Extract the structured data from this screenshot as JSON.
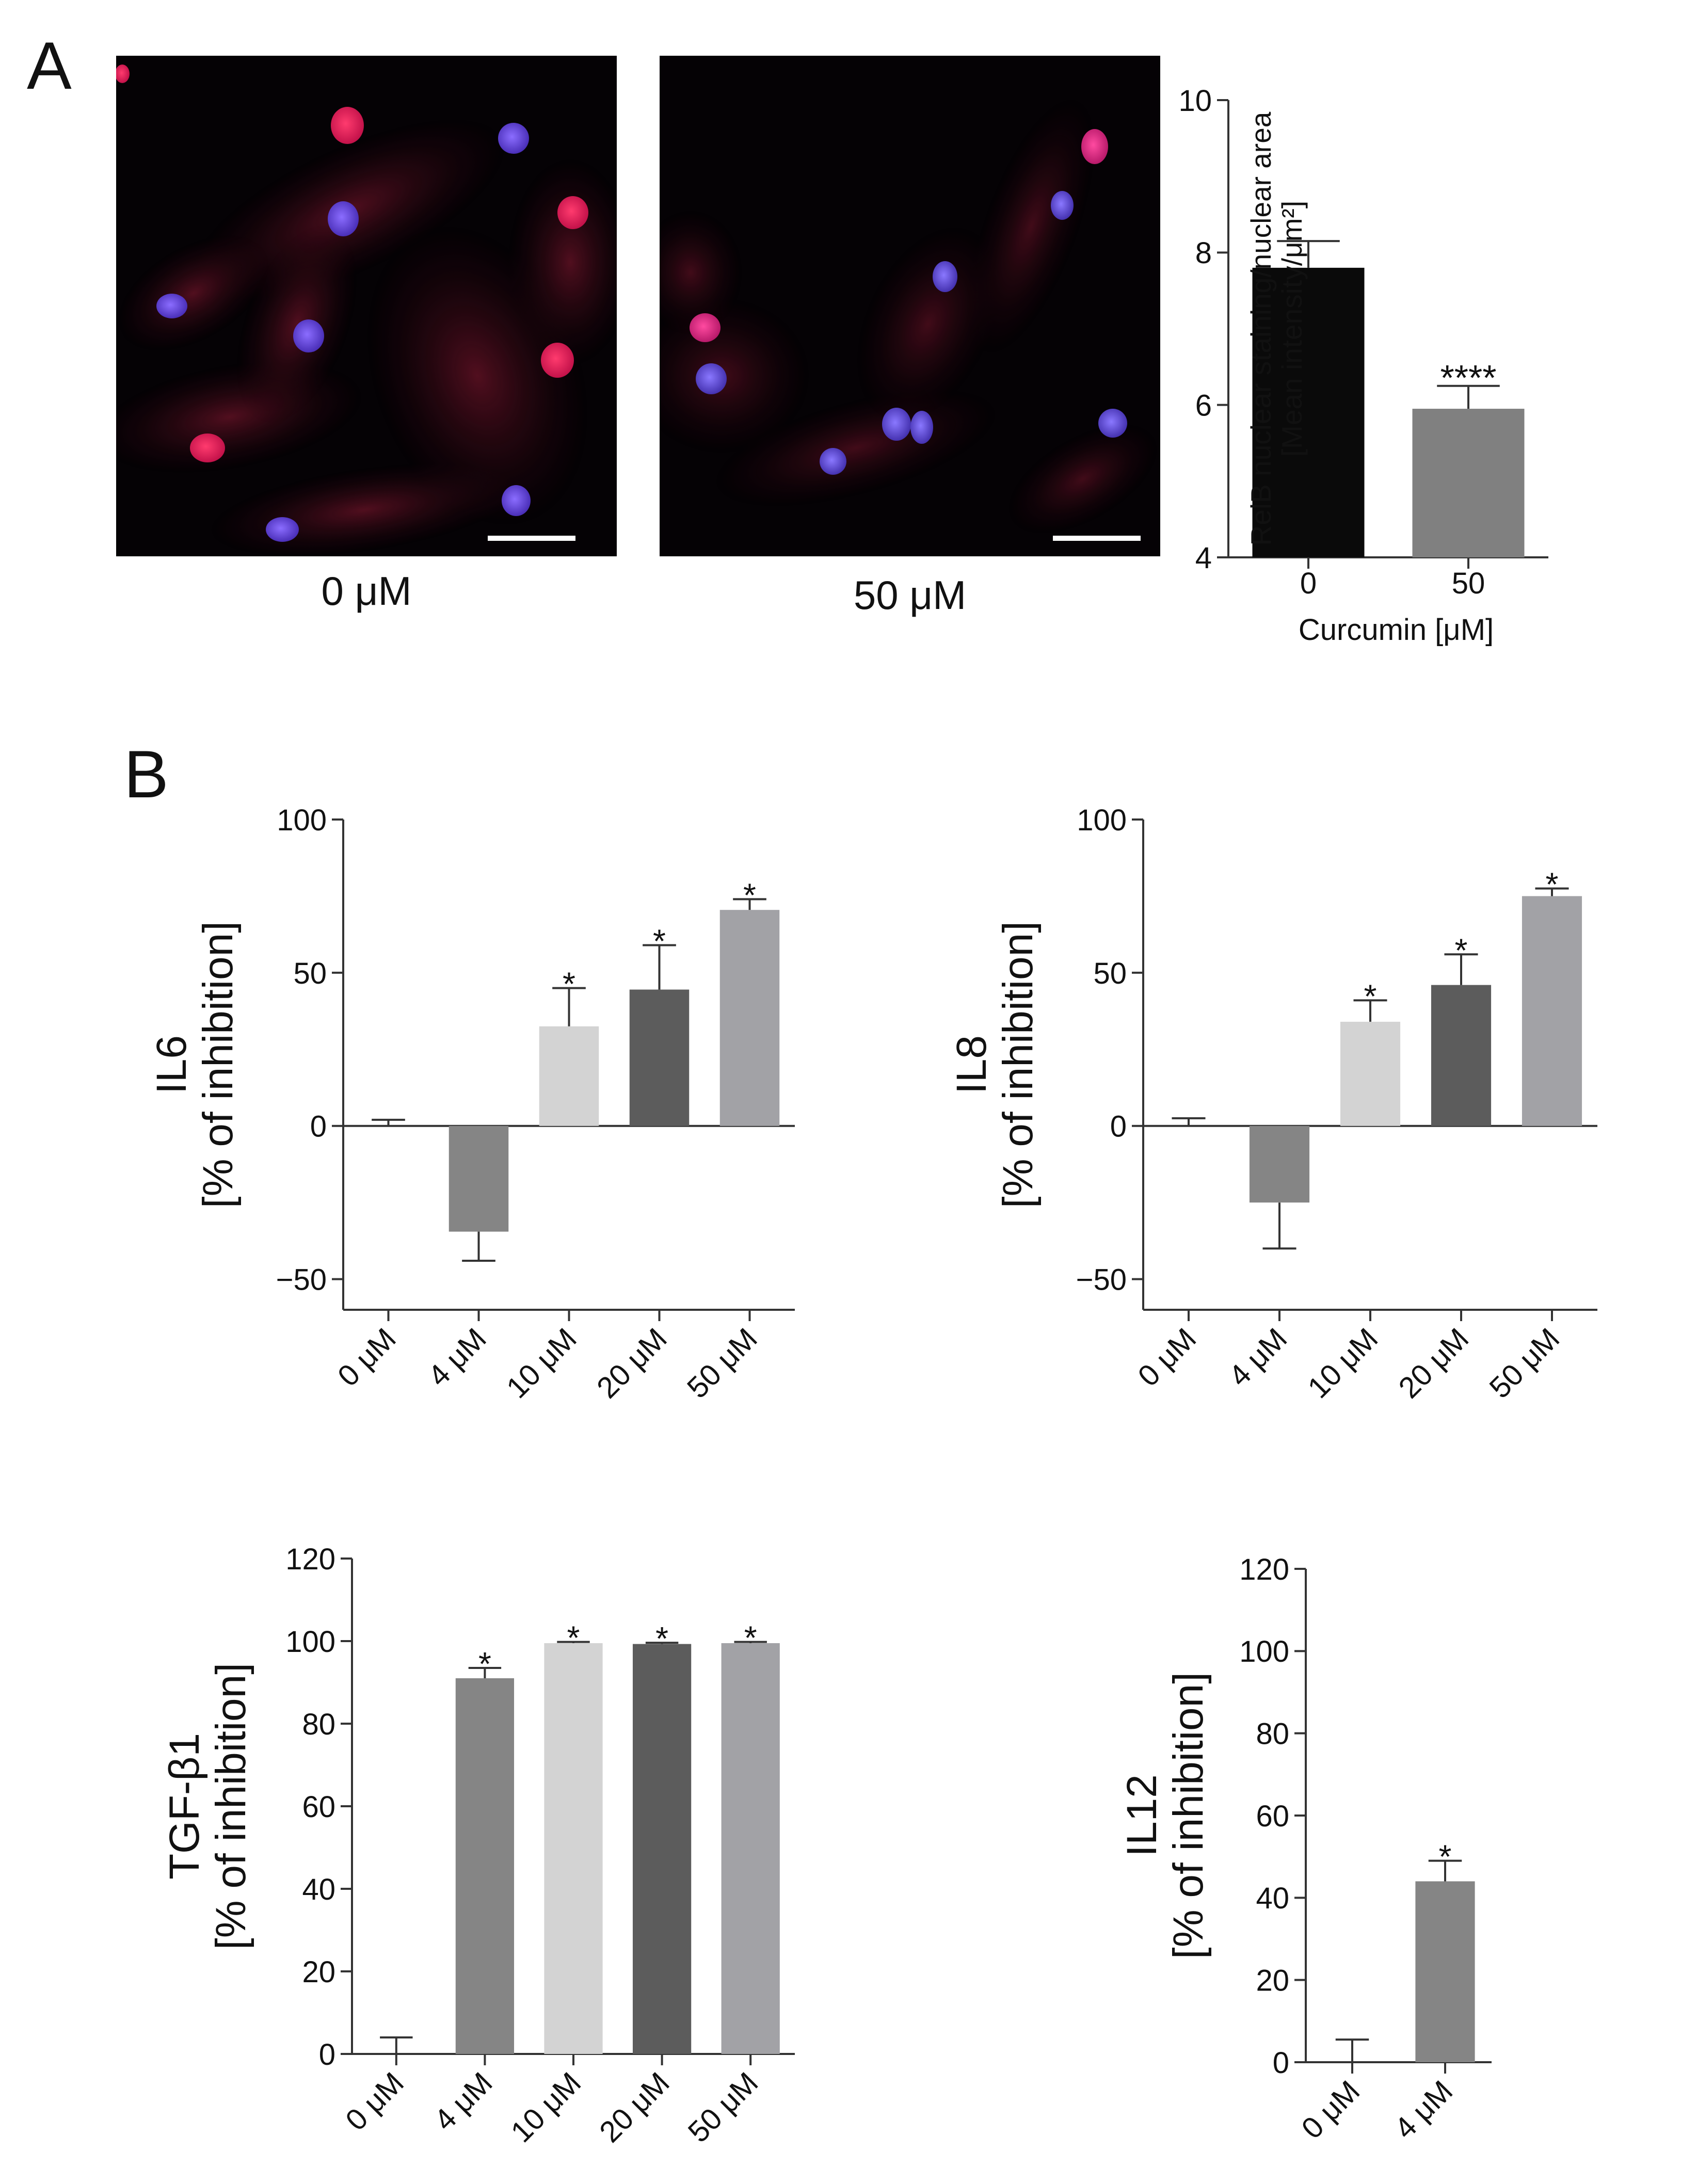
{
  "panels": {
    "a": "A",
    "b": "B"
  },
  "micrographs": [
    {
      "label": "0 μM"
    },
    {
      "label": "50 μM"
    }
  ],
  "chart_data": [
    {
      "id": "relb",
      "type": "bar",
      "ylabel_lines": [
        "RelB nuclear staining/nuclear area",
        "[Mean intensity/μm²]"
      ],
      "xlabel": "Curcumin [μM]",
      "categories": [
        "0",
        "50"
      ],
      "values": [
        7.8,
        5.95
      ],
      "errors": [
        0.35,
        0.3
      ],
      "significance": [
        "",
        "****"
      ],
      "colors": [
        "#0a0a0a",
        "#808080"
      ],
      "ylim": [
        4,
        10
      ],
      "yticks": [
        4,
        6,
        8,
        10
      ],
      "tick_labels": [
        "4",
        "6",
        "8",
        "10"
      ],
      "rotated_categories": false
    },
    {
      "id": "il6",
      "type": "bar",
      "ylabel_lines": [
        "IL6",
        "[% of inhibition]"
      ],
      "xlabel": "",
      "categories": [
        "0 μM",
        "4 μM",
        "10 μM",
        "20 μM",
        "50 μM"
      ],
      "values": [
        0,
        -34.5,
        32.5,
        44.5,
        70.5
      ],
      "errors": [
        2,
        9.5,
        12.5,
        14.5,
        3.5
      ],
      "significance": [
        "",
        "",
        "*",
        "*",
        "*"
      ],
      "colors": [
        "#ffffff",
        "#858585",
        "#d3d3d3",
        "#5c5c5c",
        "#a2a2a6"
      ],
      "ylim": [
        -60,
        100
      ],
      "yticks": [
        -50,
        0,
        50,
        100
      ],
      "tick_labels": [
        "−50",
        "0",
        "50",
        "100"
      ],
      "rotated_categories": true
    },
    {
      "id": "il8",
      "type": "bar",
      "ylabel_lines": [
        "IL8",
        "[% of inhibition]"
      ],
      "xlabel": "",
      "categories": [
        "0 μM",
        "4 μM",
        "10 μM",
        "20 μM",
        "50 μM"
      ],
      "values": [
        0,
        -25,
        34,
        46,
        75
      ],
      "errors": [
        2.5,
        15,
        7,
        10,
        2.5
      ],
      "significance": [
        "",
        "",
        "*",
        "*",
        "*"
      ],
      "colors": [
        "#ffffff",
        "#858585",
        "#d3d3d3",
        "#5c5c5c",
        "#a2a2a6"
      ],
      "ylim": [
        -60,
        100
      ],
      "yticks": [
        -50,
        0,
        50,
        100
      ],
      "tick_labels": [
        "−50",
        "0",
        "50",
        "100"
      ],
      "rotated_categories": true
    },
    {
      "id": "tgfb1",
      "type": "bar",
      "ylabel_lines": [
        "TGF-β1",
        "[% of inhibition]"
      ],
      "xlabel": "",
      "categories": [
        "0 μM",
        "4 μM",
        "10 μM",
        "20 μM",
        "50 μM"
      ],
      "values": [
        0,
        91,
        99.5,
        99.3,
        99.5
      ],
      "errors": [
        4,
        2.5,
        0.3,
        0.3,
        0.3
      ],
      "significance": [
        "",
        "*",
        "*",
        "*",
        "*"
      ],
      "colors": [
        "#ffffff",
        "#858585",
        "#d3d3d3",
        "#5c5c5c",
        "#a2a2a6"
      ],
      "ylim": [
        0,
        120
      ],
      "yticks": [
        0,
        20,
        40,
        60,
        80,
        100,
        120
      ],
      "tick_labels": [
        "0",
        "20",
        "40",
        "60",
        "80",
        "100",
        "120"
      ],
      "rotated_categories": true
    },
    {
      "id": "il12",
      "type": "bar",
      "ylabel_lines": [
        "IL12",
        "[% of inhibition]"
      ],
      "xlabel": "",
      "categories": [
        "0 μM",
        "4 μM"
      ],
      "values": [
        0,
        44
      ],
      "errors": [
        5.5,
        5
      ],
      "significance": [
        "",
        "*"
      ],
      "colors": [
        "#ffffff",
        "#858585"
      ],
      "ylim": [
        0,
        120
      ],
      "yticks": [
        0,
        20,
        40,
        60,
        80,
        100,
        120
      ],
      "tick_labels": [
        "0",
        "20",
        "40",
        "60",
        "80",
        "100",
        "120"
      ],
      "rotated_categories": true
    }
  ]
}
